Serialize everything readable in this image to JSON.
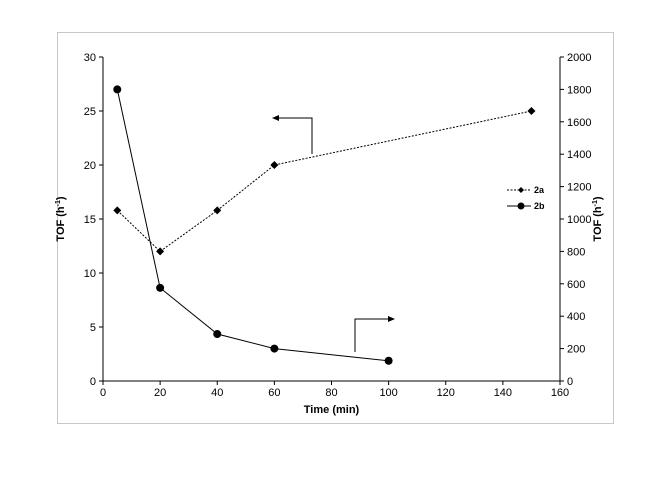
{
  "chart_data": {
    "type": "line",
    "xlabel": "Time (min)",
    "ylabel_left": "TOF (h",
    "ylabel_right": "TOF (h",
    "ylabel_superscript": "-1",
    "ylabel_close": ")",
    "xlim": [
      0,
      160
    ],
    "xticks": [
      0,
      20,
      40,
      60,
      80,
      100,
      120,
      140,
      160
    ],
    "ylim_left": [
      0,
      30
    ],
    "yticks_left": [
      0,
      5,
      10,
      15,
      20,
      25,
      30
    ],
    "ylim_right": [
      0,
      2000
    ],
    "yticks_right": [
      0,
      200,
      400,
      600,
      800,
      1000,
      1200,
      1400,
      1600,
      1800,
      2000
    ],
    "legend_position": "right",
    "grid": false,
    "series": [
      {
        "name": "2a",
        "axis": "left",
        "marker": "diamond",
        "line_style": "dotted",
        "color": "#000000",
        "x": [
          5,
          20,
          40,
          60,
          150
        ],
        "y": [
          15.8,
          12,
          15.8,
          20,
          25
        ]
      },
      {
        "name": "2b",
        "axis": "right",
        "marker": "circle",
        "line_style": "solid",
        "color": "#000000",
        "x": [
          5,
          20,
          40,
          60,
          100
        ],
        "y": [
          1800,
          575,
          290,
          200,
          125
        ]
      }
    ],
    "annotations": [
      {
        "type": "arrow",
        "direction": "left",
        "points_to": "left-axis",
        "series": "2a"
      },
      {
        "type": "arrow",
        "direction": "right",
        "points_to": "right-axis",
        "series": "2b"
      }
    ]
  }
}
